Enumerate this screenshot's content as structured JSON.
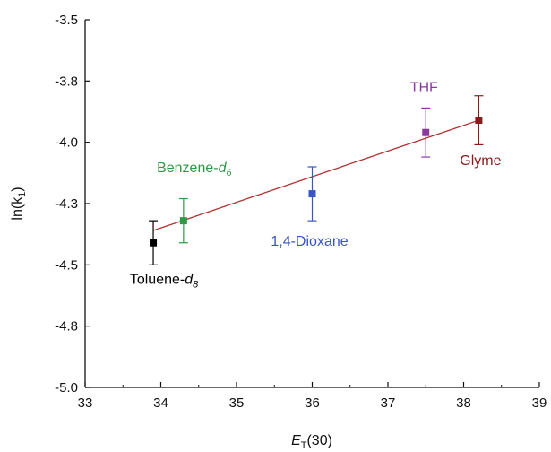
{
  "chart_data": {
    "type": "scatter",
    "title": "",
    "xlabel": {
      "main": "E",
      "sub": "T",
      "tail": "(30)"
    },
    "ylabel": {
      "main": "ln(k",
      "sub": "1",
      "tail": ")"
    },
    "xlim": [
      33,
      39
    ],
    "ylim": [
      -5.0,
      -3.5
    ],
    "xticks": [
      "33",
      "34",
      "35",
      "36",
      "37",
      "38",
      "39"
    ],
    "yticks": [
      "-3.5",
      "-3.8",
      "-4.0",
      "-4.3",
      "-4.5",
      "-4.8",
      "-5.0"
    ],
    "ytick_values": [
      -3.5,
      -3.75,
      -4.0,
      -4.25,
      -4.5,
      -4.75,
      -5.0
    ],
    "grid": false,
    "points": [
      {
        "label": "Toluene-",
        "label_sub": "8",
        "x": 33.9,
        "y": -4.41,
        "err": 0.09,
        "color": "#000000"
      },
      {
        "label": "Benzene-",
        "label_sub": "6",
        "x": 34.3,
        "y": -4.32,
        "err": 0.09,
        "color": "#2e9a46"
      },
      {
        "label": "1,4-Dioxane",
        "label_sub": "",
        "x": 36.0,
        "y": -4.21,
        "err": 0.11,
        "color": "#3a56c4"
      },
      {
        "label": "THF",
        "label_sub": "",
        "x": 37.5,
        "y": -3.96,
        "err": 0.1,
        "color": "#8a3a9e"
      },
      {
        "label": "Glyme",
        "label_sub": "",
        "x": 38.2,
        "y": -3.91,
        "err": 0.1,
        "color": "#8b1a1a"
      }
    ],
    "fit_line": {
      "x": [
        33.9,
        38.2
      ],
      "y": [
        -4.36,
        -3.91
      ],
      "color": "#b03030"
    }
  }
}
